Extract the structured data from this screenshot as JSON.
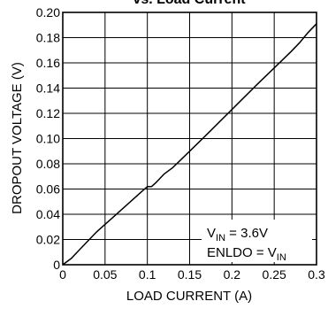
{
  "chart_data": {
    "type": "line",
    "title": "vs. Load Current",
    "xlabel": "LOAD CURRENT (A)",
    "ylabel": "DROPOUT VOLTAGE (V)",
    "xlim": [
      0,
      0.3
    ],
    "ylim": [
      0,
      0.2
    ],
    "x_ticks": [
      "0",
      "0.05",
      "0.1",
      "0.15",
      "0.2",
      "0.25",
      "0.3"
    ],
    "y_ticks": [
      "0",
      "0.02",
      "0.04",
      "0.06",
      "0.08",
      "0.10",
      "0.12",
      "0.14",
      "0.16",
      "0.18",
      "0.20"
    ],
    "grid": true,
    "annotation": {
      "vin": {
        "main": "V",
        "sub": "IN",
        "rest": " = 3.6V"
      },
      "enldo": {
        "main": "ENLDO = V",
        "sub": "IN"
      }
    },
    "series": [
      {
        "x": [
          0,
          0.01,
          0.02,
          0.03,
          0.04,
          0.05,
          0.06,
          0.07,
          0.08,
          0.09,
          0.1,
          0.105,
          0.11,
          0.12,
          0.13,
          0.15,
          0.17,
          0.2,
          0.23,
          0.25,
          0.27,
          0.28,
          0.29,
          0.3
        ],
        "y": [
          0,
          0.005,
          0.012,
          0.019,
          0.026,
          0.032,
          0.038,
          0.044,
          0.05,
          0.056,
          0.062,
          0.062,
          0.065,
          0.072,
          0.077,
          0.09,
          0.103,
          0.123,
          0.143,
          0.156,
          0.169,
          0.176,
          0.184,
          0.191
        ]
      }
    ]
  }
}
